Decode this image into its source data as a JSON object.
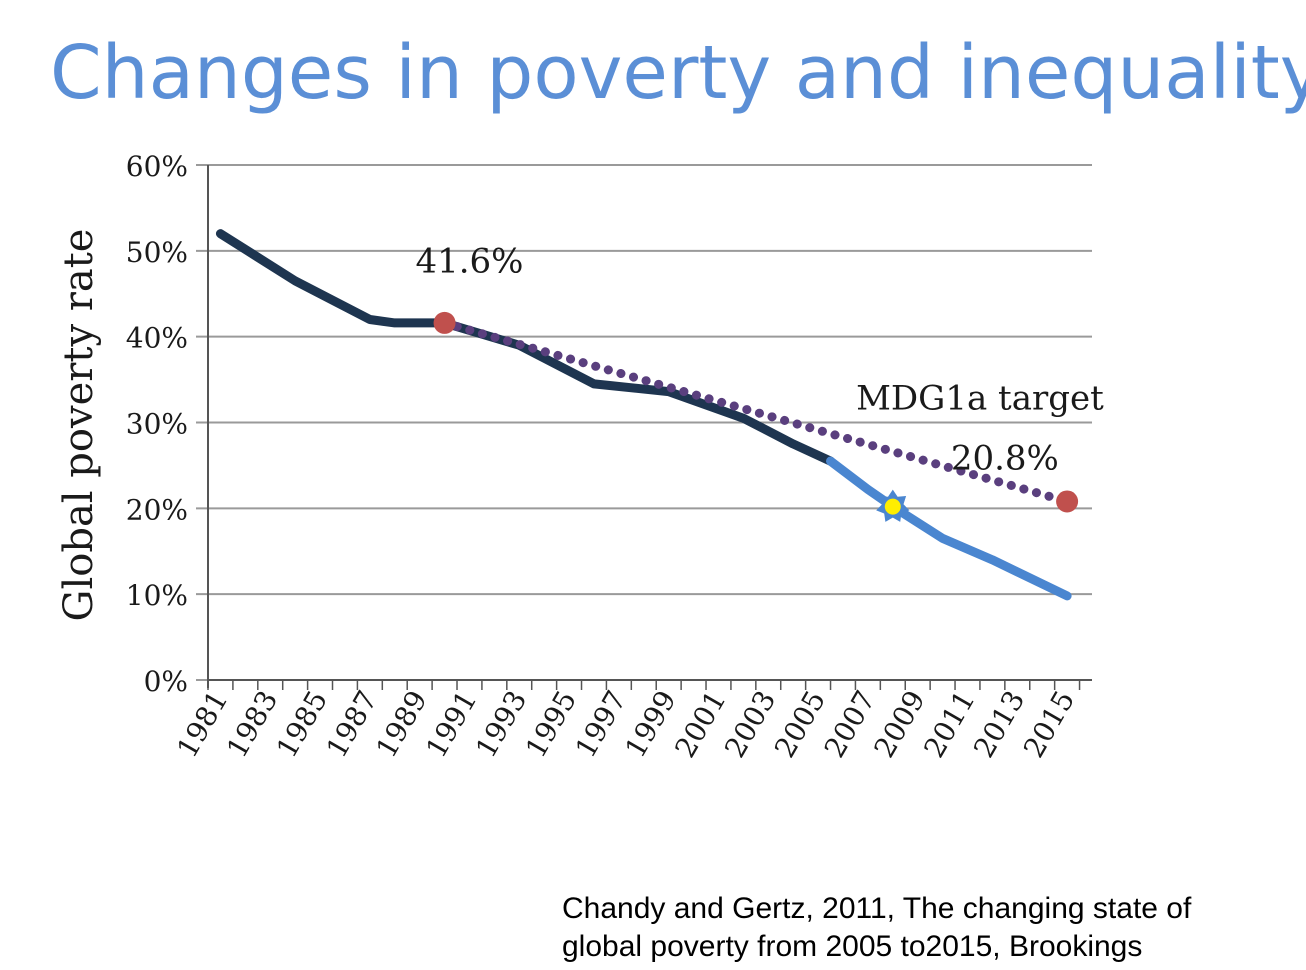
{
  "slide": {
    "title": "Changes in poverty and inequality",
    "citation_line1": "Chandy and Gertz, 2011, The changing  state of",
    "citation_line2": "global poverty from 2005 to2015, Brookings"
  },
  "chart_data": {
    "type": "line",
    "title": "",
    "xlabel": "",
    "ylabel": "Global poverty rate",
    "xlim": [
      1980.5,
      2016
    ],
    "ylim": [
      0,
      60
    ],
    "x_ticks": [
      1981,
      1983,
      1985,
      1987,
      1989,
      1991,
      1993,
      1995,
      1997,
      1999,
      2001,
      2003,
      2005,
      2007,
      2009,
      2011,
      2013,
      2015
    ],
    "y_ticks": [
      0,
      10,
      20,
      30,
      40,
      50,
      60
    ],
    "y_tick_labels": [
      "0%",
      "10%",
      "20%",
      "30%",
      "40%",
      "50%",
      "60%"
    ],
    "grid": "horizontal",
    "series": [
      {
        "style": "solid",
        "color": "#1e3550",
        "points": [
          [
            1981,
            52.0
          ],
          [
            1984,
            46.5
          ],
          [
            1987,
            42.0
          ],
          [
            1988,
            41.6
          ],
          [
            1990,
            41.6
          ],
          [
            1993,
            39.0
          ],
          [
            1996,
            34.5
          ],
          [
            1999,
            33.6
          ],
          [
            2002,
            30.5
          ],
          [
            2004,
            27.5
          ],
          [
            2005.5,
            25.5
          ]
        ]
      },
      {
        "style": "solid",
        "color": "#4a86d0",
        "points": [
          [
            2005.5,
            25.5
          ],
          [
            2007,
            22.2
          ],
          [
            2008,
            20.2
          ],
          [
            2010,
            16.5
          ],
          [
            2012,
            14.0
          ],
          [
            2015,
            9.8
          ]
        ]
      },
      {
        "style": "dotted",
        "color": "#5a3f7e",
        "points": [
          [
            1990,
            41.6
          ],
          [
            2015,
            20.8
          ]
        ]
      }
    ],
    "markers": [
      {
        "x": 1990,
        "y": 41.6,
        "color": "#c0504d",
        "shape": "circle"
      },
      {
        "x": 2015,
        "y": 20.8,
        "color": "#c0504d",
        "shape": "circle"
      },
      {
        "x": 2008,
        "y": 20.2,
        "color": "#ffee00",
        "outline": "#4a86d0",
        "shape": "star"
      }
    ],
    "annotations": [
      {
        "text": "41.6%",
        "x": 1991,
        "y": 47.5
      },
      {
        "text": "MDG1a target",
        "x": 2011.5,
        "y": 31.5
      },
      {
        "text": "20.8%",
        "x": 2012.5,
        "y": 24.5
      }
    ]
  }
}
